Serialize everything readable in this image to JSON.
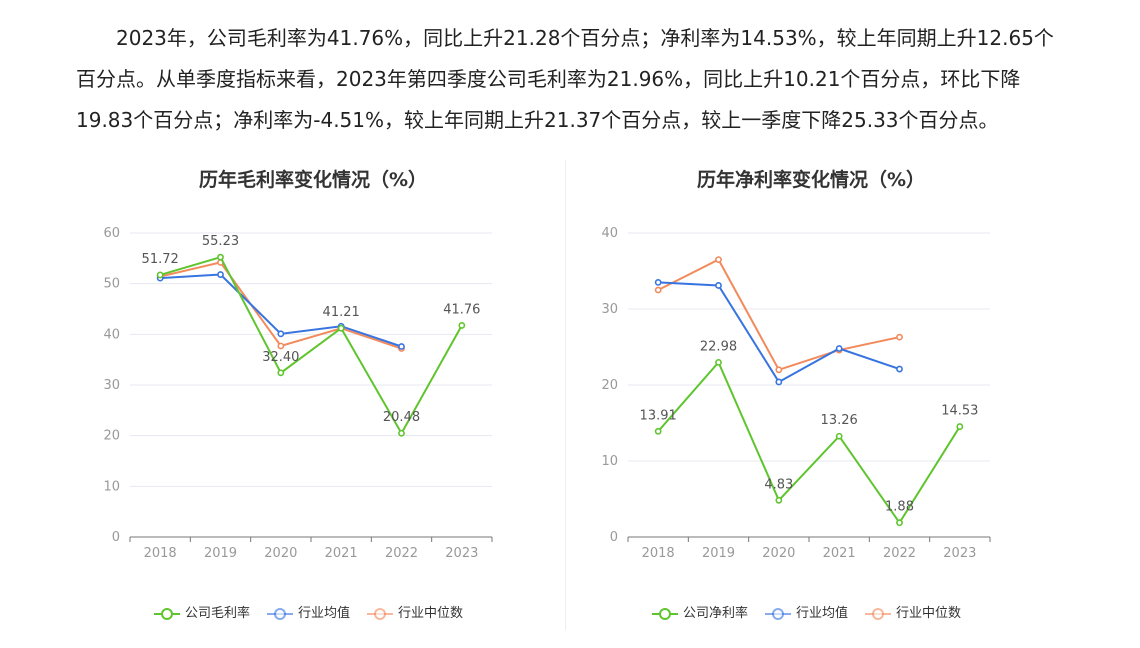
{
  "paragraph": "2023年，公司毛利率为41.76%，同比上升21.28个百分点；净利率为14.53%，较上年同期上升12.65个百分点。从单季度指标来看，2023年第四季度公司毛利率为21.96%，同比上升10.21个百分点，环比下降19.83个百分点；净利率为-4.51%，较上年同期上升21.37个百分点，较上一季度下降25.33个百分点。",
  "colors": {
    "company": "#5fc52e",
    "avg": "#3874e0",
    "median": "#f28a5c",
    "grid": "#e6e8f0",
    "axis": "#999999"
  },
  "chart_data": [
    {
      "type": "line",
      "title": "历年毛利率变化情况（%）",
      "x": [
        "2018",
        "2019",
        "2020",
        "2021",
        "2022",
        "2023"
      ],
      "ylim": [
        0,
        60
      ],
      "yticks": [
        "0",
        "10",
        "20",
        "30",
        "40",
        "50",
        "60"
      ],
      "grid": true,
      "legend_position": "bottom",
      "series": [
        {
          "name": "公司毛利率",
          "key": "company",
          "values": [
            51.72,
            55.23,
            32.4,
            41.21,
            20.48,
            41.76
          ],
          "labels": [
            "51.72",
            "55.23",
            "32.40",
            "41.21",
            "20.48",
            "41.76"
          ]
        },
        {
          "name": "行业均值",
          "key": "avg",
          "values": [
            51.1,
            51.8,
            40.1,
            41.6,
            37.6,
            null
          ]
        },
        {
          "name": "行业中位数",
          "key": "median",
          "values": [
            51.4,
            54.2,
            37.7,
            41.2,
            37.2,
            null
          ]
        }
      ]
    },
    {
      "type": "line",
      "title": "历年净利率变化情况（%）",
      "x": [
        "2018",
        "2019",
        "2020",
        "2021",
        "2022",
        "2023"
      ],
      "ylim": [
        0,
        40
      ],
      "yticks": [
        "0",
        "10",
        "20",
        "30",
        "40"
      ],
      "grid": true,
      "legend_position": "bottom",
      "series": [
        {
          "name": "公司净利率",
          "key": "company",
          "values": [
            13.91,
            22.98,
            4.83,
            13.26,
            1.88,
            14.53
          ],
          "labels": [
            "13.91",
            "22.98",
            "4.83",
            "13.26",
            "1.88",
            "14.53"
          ]
        },
        {
          "name": "行业均值",
          "key": "avg",
          "values": [
            33.5,
            33.1,
            20.4,
            24.8,
            22.1,
            null
          ]
        },
        {
          "name": "行业中位数",
          "key": "median",
          "values": [
            32.5,
            36.5,
            22.0,
            24.6,
            26.3,
            null
          ]
        }
      ]
    }
  ]
}
